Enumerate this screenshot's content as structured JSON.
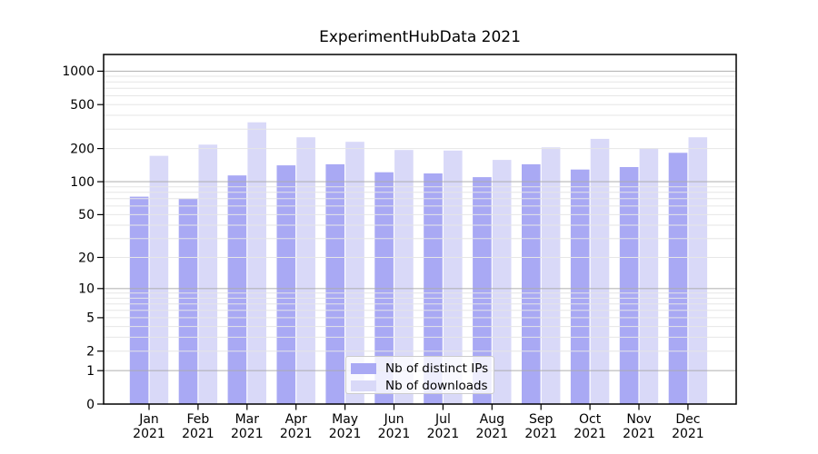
{
  "chart_data": {
    "type": "bar",
    "title": "ExperimentHubData 2021",
    "categories": [
      "Jan 2021",
      "Feb 2021",
      "Mar 2021",
      "Apr 2021",
      "May 2021",
      "Jun 2021",
      "Jul 2021",
      "Aug 2021",
      "Sep 2021",
      "Oct 2021",
      "Nov 2021",
      "Dec 2021"
    ],
    "month_labels": [
      "Jan",
      "Feb",
      "Mar",
      "Apr",
      "May",
      "Jun",
      "Jul",
      "Aug",
      "Sep",
      "Oct",
      "Nov",
      "Dec"
    ],
    "year_label": "2021",
    "series": [
      {
        "name": "Nb of distinct IPs",
        "color": "#a9a9f4",
        "values": [
          73,
          70,
          114,
          141,
          144,
          122,
          119,
          110,
          144,
          129,
          136,
          183
        ]
      },
      {
        "name": "Nb of downloads",
        "color": "#d9d9f8",
        "values": [
          172,
          217,
          346,
          253,
          230,
          194,
          192,
          158,
          205,
          245,
          202,
          253
        ]
      }
    ],
    "xlabel": "",
    "ylabel": "",
    "yscale": "log1p",
    "y_ticks": [
      0,
      1,
      2,
      5,
      10,
      20,
      50,
      100,
      200,
      500,
      1000
    ],
    "y_major_gridlines": [
      1,
      10,
      100,
      1000
    ],
    "ylim": [
      0,
      1416
    ],
    "grid": "horizontal major and minor gridlines, drawn over bars",
    "legend_position": "inside lower-center",
    "grid_major_color": "#ababab",
    "grid_minor_color": "#e6e6e6",
    "axis_color": "#000000",
    "background_color": "#ffffff"
  }
}
